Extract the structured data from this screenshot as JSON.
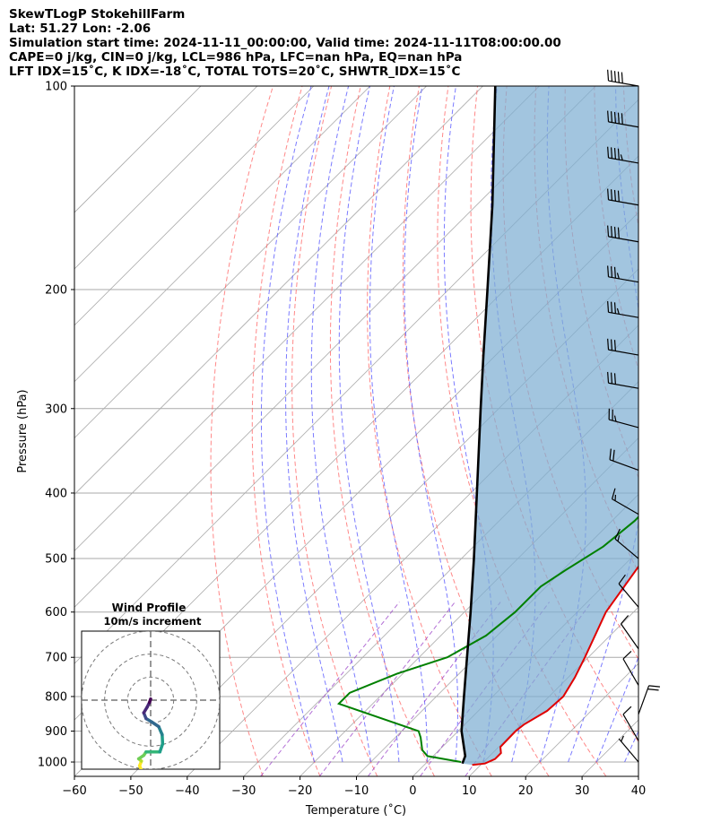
{
  "header": {
    "title": "SkewTLogP StokehillFarm",
    "location": "Lat: 51.27   Lon: -2.06",
    "times": "Simulation start time: 2024-11-11_00:00:00, Valid time: 2024-11-11T08:00:00.00",
    "params1": "CAPE=0 j/kg, CIN=0 j/kg, LCL=986 hPa, LFC=nan hPa, EQ=nan hPa",
    "params2": "LFT IDX=15˚C, K IDX=-18˚C, TOTAL TOTS=20˚C, SHWTR_IDX=15˚C"
  },
  "chart_data": {
    "type": "line",
    "subtype": "skew-t log-p",
    "xlabel": "Temperature (˚C)",
    "ylabel": "Pressure (hPa)",
    "xlim": [
      -60,
      40
    ],
    "ylim": [
      1050,
      100
    ],
    "y_scale": "log",
    "x_ticks": [
      -60,
      -50,
      -40,
      -30,
      -20,
      -10,
      0,
      10,
      20,
      30,
      40
    ],
    "y_ticks": [
      100,
      200,
      300,
      400,
      500,
      600,
      700,
      800,
      900,
      1000
    ],
    "grid": true,
    "colors": {
      "temperature": "#e00000",
      "dewpoint": "#008000",
      "parcel": "#000000",
      "cape_fill": "#7eafd3",
      "dry_adiabats": "#ff6060",
      "moist_adiabats": "#5a5aff",
      "mixing_ratio": "#9a40c8",
      "isotherms": "#aaaaaa"
    },
    "series": [
      {
        "key": "temperature",
        "points": [
          [
            1010,
            8.5
          ],
          [
            1005,
            10.5
          ],
          [
            990,
            11.5
          ],
          [
            970,
            11.5
          ],
          [
            950,
            10.3
          ],
          [
            900,
            10.2
          ],
          [
            880,
            10.5
          ],
          [
            840,
            12.2
          ],
          [
            800,
            12.5
          ],
          [
            750,
            11.2
          ],
          [
            700,
            9.4
          ],
          [
            600,
            5.1
          ],
          [
            500,
            2.4
          ],
          [
            440,
            1.4
          ],
          [
            400,
            -0.4
          ],
          [
            350,
            -2.8
          ],
          [
            300,
            -6.3
          ],
          [
            260,
            -9.5
          ],
          [
            250,
            -10.8
          ],
          [
            230,
            -10.5
          ],
          [
            200,
            -9.5
          ],
          [
            180,
            -8.4
          ],
          [
            160,
            -6.1
          ],
          [
            145,
            -3.7
          ],
          [
            130,
            -1.8
          ],
          [
            115,
            -0.5
          ],
          [
            107,
            0.0
          ],
          [
            100,
            0.1
          ]
        ]
      },
      {
        "key": "dewpoint",
        "points": [
          [
            1000,
            6.0
          ],
          [
            980,
            -1.0
          ],
          [
            960,
            -3.0
          ],
          [
            920,
            -5.5
          ],
          [
            900,
            -7.0
          ],
          [
            820,
            -26.0
          ],
          [
            790,
            -26.0
          ],
          [
            740,
            -21.0
          ],
          [
            700,
            -15.0
          ],
          [
            650,
            -12.0
          ],
          [
            600,
            -11.0
          ],
          [
            550,
            -11.0
          ],
          [
            520,
            -9.5
          ],
          [
            480,
            -7.0
          ],
          [
            440,
            -6.0
          ],
          [
            400,
            -6.0
          ],
          [
            370,
            -6.0
          ],
          [
            340,
            -7.5
          ],
          [
            300,
            -10.0
          ],
          [
            270,
            -12.0
          ],
          [
            250,
            -13.5
          ],
          [
            230,
            -13.0
          ],
          [
            200,
            -13.0
          ],
          [
            180,
            -15.0
          ],
          [
            165,
            -17.0
          ],
          [
            150,
            -19.0
          ],
          [
            140,
            -19.5
          ],
          [
            130,
            -16.5
          ],
          [
            115,
            -12.5
          ],
          [
            100,
            -8.5
          ]
        ]
      },
      {
        "key": "parcel",
        "points": [
          [
            1005,
            6.5
          ],
          [
            980,
            5.7
          ],
          [
            900,
            0.6
          ],
          [
            800,
            -5.1
          ],
          [
            700,
            -11.5
          ],
          [
            600,
            -18.9
          ],
          [
            500,
            -27.8
          ],
          [
            400,
            -38.9
          ],
          [
            300,
            -53.2
          ],
          [
            250,
            -62.2
          ],
          [
            200,
            -73.1
          ],
          [
            150,
            -87.2
          ],
          [
            100,
            -107.8
          ]
        ]
      }
    ],
    "wind_barbs": [
      {
        "pressure": 100,
        "speed_kt": 50,
        "dir_deg": 280
      },
      {
        "pressure": 115,
        "speed_kt": 50,
        "dir_deg": 280
      },
      {
        "pressure": 130,
        "speed_kt": 45,
        "dir_deg": 280
      },
      {
        "pressure": 150,
        "speed_kt": 40,
        "dir_deg": 280
      },
      {
        "pressure": 170,
        "speed_kt": 40,
        "dir_deg": 280
      },
      {
        "pressure": 195,
        "speed_kt": 35,
        "dir_deg": 280
      },
      {
        "pressure": 220,
        "speed_kt": 35,
        "dir_deg": 280
      },
      {
        "pressure": 250,
        "speed_kt": 30,
        "dir_deg": 280
      },
      {
        "pressure": 280,
        "speed_kt": 30,
        "dir_deg": 280
      },
      {
        "pressure": 320,
        "speed_kt": 25,
        "dir_deg": 285
      },
      {
        "pressure": 370,
        "speed_kt": 20,
        "dir_deg": 290
      },
      {
        "pressure": 430,
        "speed_kt": 15,
        "dir_deg": 300
      },
      {
        "pressure": 500,
        "speed_kt": 15,
        "dir_deg": 310
      },
      {
        "pressure": 590,
        "speed_kt": 10,
        "dir_deg": 320
      },
      {
        "pressure": 680,
        "speed_kt": 10,
        "dir_deg": 325
      },
      {
        "pressure": 770,
        "speed_kt": 10,
        "dir_deg": 330
      },
      {
        "pressure": 850,
        "speed_kt": 20,
        "dir_deg": 20
      },
      {
        "pressure": 930,
        "speed_kt": 10,
        "dir_deg": 330
      },
      {
        "pressure": 1000,
        "speed_kt": 5,
        "dir_deg": 320
      }
    ],
    "hodograph": {
      "title": "Wind Profile",
      "subtitle": "10m/s increment",
      "rings_ms": [
        10,
        20,
        30
      ],
      "range_ms": 30,
      "points_uv": [
        [
          -3.8,
          -31.0
        ],
        [
          -4.8,
          -28.5
        ],
        [
          -4.0,
          -26.5
        ],
        [
          -5.2,
          -25.5
        ],
        [
          -3.0,
          -24.0
        ],
        [
          -2.0,
          -22.5
        ],
        [
          4.0,
          -22.5
        ],
        [
          5.2,
          -19.0
        ],
        [
          5.0,
          -15.0
        ],
        [
          3.5,
          -11.5
        ],
        [
          0.5,
          -9.5
        ],
        [
          -2.0,
          -8.0
        ],
        [
          -3.0,
          -5.5
        ],
        [
          -1.5,
          -3.0
        ],
        [
          -0.5,
          -1.0
        ],
        [
          0.0,
          0.5
        ]
      ]
    }
  }
}
